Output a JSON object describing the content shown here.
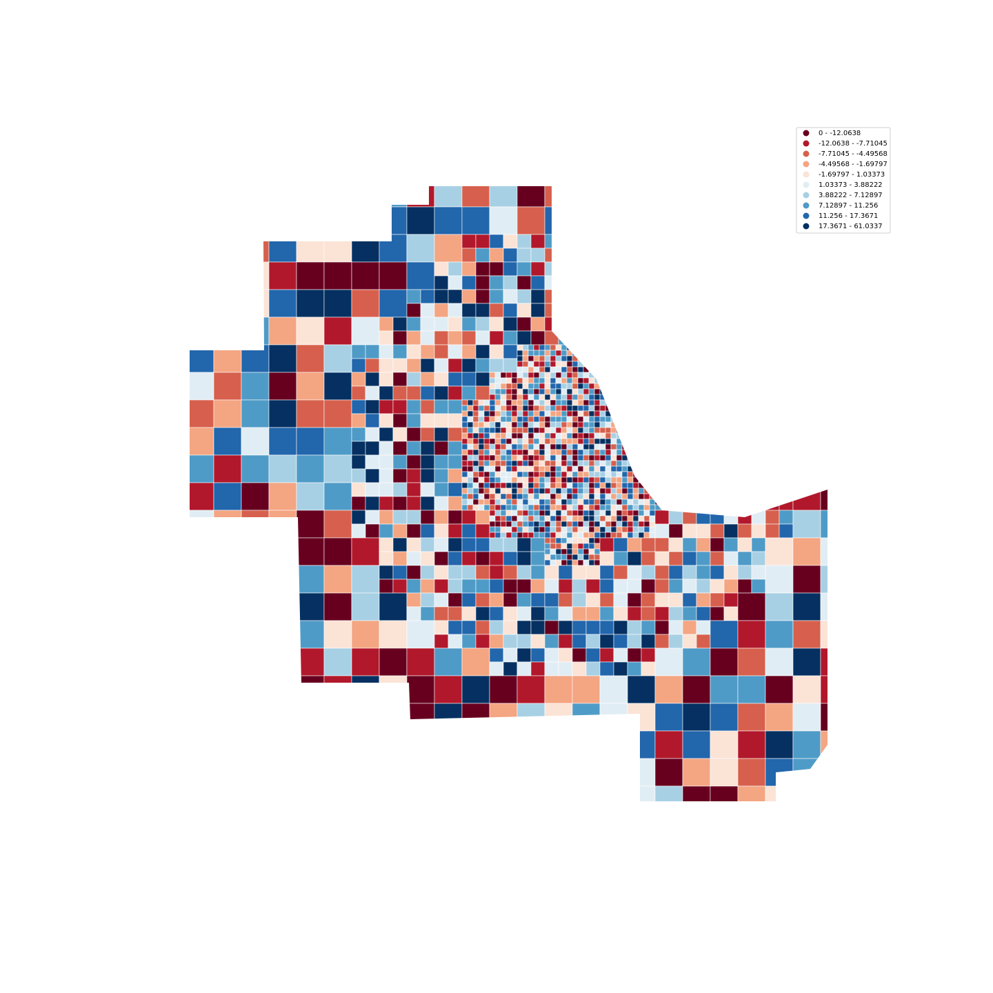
{
  "legend": {
    "items": [
      {
        "label": "0 - -12.0638",
        "color": "#67001f"
      },
      {
        "label": "-12.0638 - -7.71045",
        "color": "#b2182b"
      },
      {
        "label": "-7.71045 - -4.49568",
        "color": "#d6604d"
      },
      {
        "label": "-4.49568 - -1.69797",
        "color": "#f4a582"
      },
      {
        "label": "-1.69797 - 1.03373",
        "color": "#fbe3d6"
      },
      {
        "label": "1.03373 - 3.88222",
        "color": "#e1edf4"
      },
      {
        "label": "3.88222 - 7.12897",
        "color": "#a8d0e4"
      },
      {
        "label": "7.12897 - 11.256",
        "color": "#4f9bc7"
      },
      {
        "label": "11.256 - 17.3671",
        "color": "#2266ac"
      },
      {
        "label": "17.3671 - 61.0337",
        "color": "#053061"
      }
    ]
  }
}
